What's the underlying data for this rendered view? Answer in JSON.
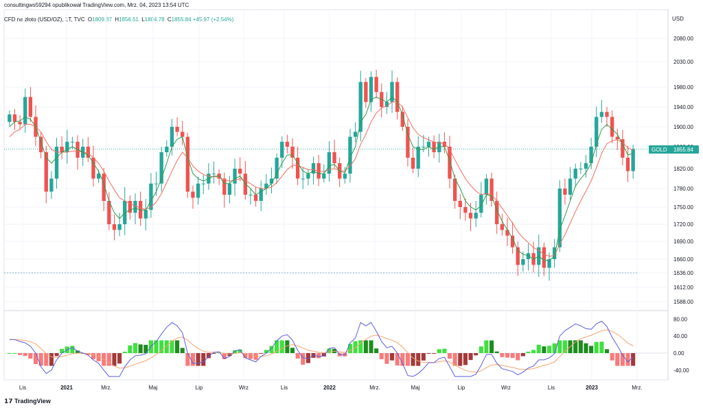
{
  "header": {
    "published_by": "consultingws59294 opublikował TradingView.com, Mrz. 04, 2023 13:54 UTC",
    "symbol": "CFD na złoto (USD/OZ), 1T, TVC",
    "o_label": "O",
    "o_value": "1809.87",
    "h_label": "H",
    "h_value": "1856.51",
    "l_label": "L",
    "l_value": "1804.78",
    "c_label": "C",
    "c_value": "1855.84",
    "change": "+45.97 (+2.54%)",
    "currency": "USD"
  },
  "price_badge": {
    "label": "GOLD",
    "value": "1855.84"
  },
  "footer": {
    "logo_text": "TradingView"
  },
  "colors": {
    "up": "#26a69a",
    "down": "#ef5350",
    "ma_fast": "#2e9b4a",
    "ma_slow": "#f26b5b",
    "macd": "#5c5ce0",
    "signal": "#f7a26b",
    "hist_up": "#3fe03f",
    "hist_down": "#f77b7b",
    "hist_up_dark": "#1e8c1e",
    "hist_down_dark": "#a33a3a"
  },
  "chart_data": [
    {
      "type": "candlestick",
      "title": "CFD na złoto (USD/OZ), 1T, TVC",
      "ylabel": "USD",
      "y_ticks": [
        2080,
        2030,
        1980,
        1940,
        1900,
        1860,
        1820,
        1780,
        1750,
        1720,
        1690,
        1660,
        1636,
        1612,
        1588
      ],
      "x_ticks": [
        "Lis",
        "2021",
        "Mrz.",
        "Maj",
        "Lip",
        "Wrz",
        "Lis",
        "2022",
        "Mrz.",
        "Maj",
        "Lip",
        "Wrz",
        "Lis",
        "2023",
        "Mrz."
      ],
      "last_price": 1855.84,
      "reference_line": 1636,
      "candles_close": [
        1925,
        1910,
        1905,
        1960,
        1920,
        1880,
        1850,
        1775,
        1800,
        1860,
        1850,
        1870,
        1870,
        1840,
        1860,
        1840,
        1800,
        1810,
        1760,
        1720,
        1710,
        1720,
        1760,
        1740,
        1760,
        1730,
        1745,
        1790,
        1790,
        1850,
        1860,
        1900,
        1890,
        1880,
        1775,
        1765,
        1790,
        1790,
        1810,
        1810,
        1800,
        1770,
        1790,
        1820,
        1810,
        1770,
        1770,
        1760,
        1780,
        1790,
        1800,
        1840,
        1870,
        1860,
        1840,
        1800,
        1800,
        1810,
        1830,
        1800,
        1810,
        1850,
        1830,
        1800,
        1810,
        1880,
        1890,
        1990,
        1950,
        2000,
        1970,
        1940,
        1950,
        1990,
        1930,
        1900,
        1840,
        1820,
        1860,
        1860,
        1870,
        1850,
        1870,
        1860,
        1800,
        1760,
        1750,
        1740,
        1730,
        1740,
        1770,
        1800,
        1760,
        1720,
        1710,
        1700,
        1680,
        1650,
        1660,
        1670,
        1650,
        1680,
        1645,
        1660,
        1680,
        1780,
        1770,
        1800,
        1820,
        1820,
        1830,
        1860,
        1920,
        1930,
        1920,
        1880,
        1875,
        1840,
        1815,
        1856
      ],
      "ma_fast": [
        1900,
        1910,
        1912,
        1920,
        1915,
        1900,
        1870,
        1840,
        1830,
        1840,
        1850,
        1855,
        1860,
        1855,
        1850,
        1845,
        1830,
        1815,
        1790,
        1760,
        1740,
        1730,
        1740,
        1745,
        1748,
        1745,
        1745,
        1760,
        1775,
        1800,
        1830,
        1860,
        1875,
        1880,
        1840,
        1810,
        1800,
        1795,
        1800,
        1805,
        1805,
        1790,
        1790,
        1800,
        1805,
        1790,
        1780,
        1770,
        1775,
        1780,
        1790,
        1810,
        1830,
        1845,
        1845,
        1830,
        1815,
        1810,
        1815,
        1810,
        1810,
        1825,
        1828,
        1815,
        1812,
        1840,
        1860,
        1910,
        1925,
        1955,
        1960,
        1955,
        1950,
        1960,
        1950,
        1925,
        1885,
        1860,
        1855,
        1855,
        1860,
        1855,
        1860,
        1860,
        1835,
        1800,
        1780,
        1760,
        1750,
        1745,
        1752,
        1770,
        1768,
        1745,
        1725,
        1710,
        1695,
        1675,
        1668,
        1666,
        1660,
        1665,
        1658,
        1658,
        1665,
        1710,
        1735,
        1760,
        1785,
        1800,
        1812,
        1830,
        1865,
        1895,
        1905,
        1895,
        1885,
        1865,
        1845,
        1848
      ],
      "ma_slow": [
        1880,
        1890,
        1895,
        1905,
        1905,
        1900,
        1890,
        1870,
        1855,
        1850,
        1850,
        1850,
        1852,
        1852,
        1850,
        1848,
        1840,
        1830,
        1815,
        1795,
        1778,
        1765,
        1760,
        1755,
        1752,
        1748,
        1746,
        1750,
        1758,
        1772,
        1792,
        1815,
        1835,
        1850,
        1840,
        1825,
        1815,
        1808,
        1805,
        1804,
        1803,
        1798,
        1795,
        1797,
        1800,
        1797,
        1790,
        1783,
        1780,
        1780,
        1783,
        1792,
        1805,
        1818,
        1826,
        1826,
        1822,
        1818,
        1818,
        1815,
        1814,
        1818,
        1820,
        1817,
        1815,
        1825,
        1838,
        1865,
        1885,
        1910,
        1928,
        1938,
        1942,
        1950,
        1950,
        1940,
        1918,
        1898,
        1885,
        1878,
        1874,
        1869,
        1868,
        1866,
        1855,
        1836,
        1818,
        1800,
        1786,
        1776,
        1770,
        1772,
        1770,
        1760,
        1748,
        1735,
        1722,
        1707,
        1696,
        1688,
        1679,
        1675,
        1668,
        1665,
        1666,
        1685,
        1702,
        1722,
        1742,
        1760,
        1776,
        1795,
        1822,
        1848,
        1866,
        1872,
        1874,
        1868,
        1858,
        1854
      ]
    },
    {
      "type": "macd",
      "y_ticks": [
        80,
        40,
        0,
        -40
      ]
    }
  ]
}
